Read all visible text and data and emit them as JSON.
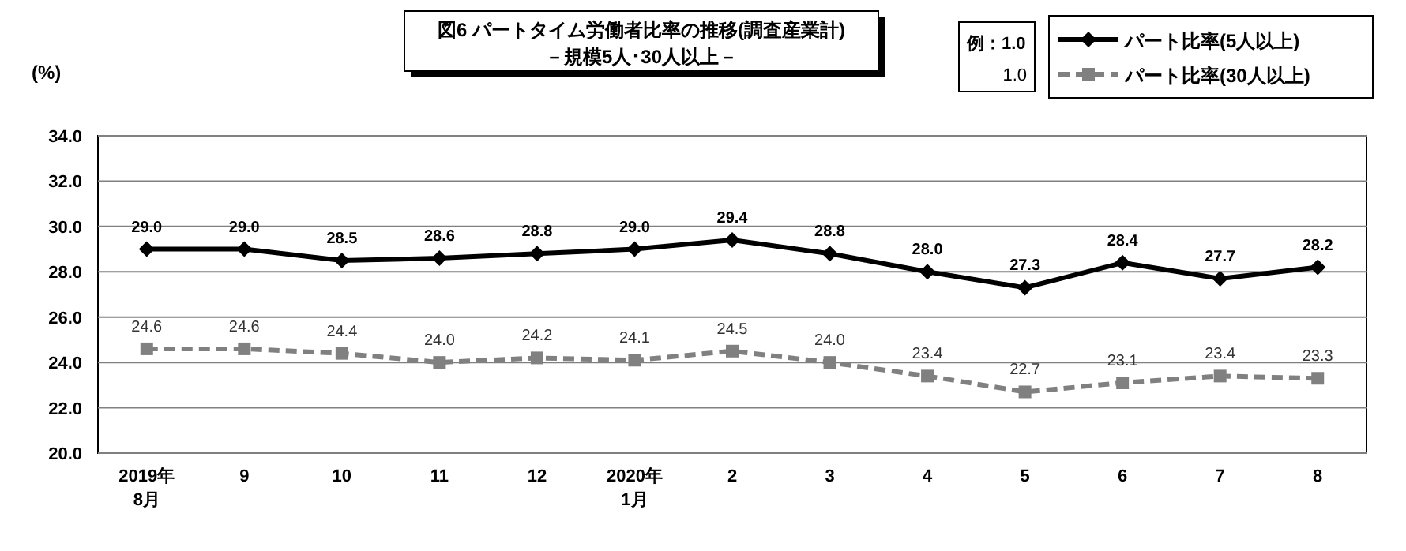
{
  "chart_data": {
    "type": "line",
    "title": "図6  パートタイム労働者比率の推移(調査産業計)",
    "subtitle": "－規模5人･30人以上－",
    "ylabel": "(%)",
    "categories": [
      "2019年\n8月",
      "9",
      "10",
      "11",
      "12",
      "2020年\n1月",
      "2",
      "3",
      "4",
      "5",
      "6",
      "7",
      "8"
    ],
    "series": [
      {
        "name": "パート比率(5人以上)",
        "color": "#000000",
        "marker": "diamond",
        "line_style": "solid",
        "values": [
          29.0,
          29.0,
          28.5,
          28.6,
          28.8,
          29.0,
          29.4,
          28.8,
          28.0,
          27.3,
          28.4,
          27.7,
          28.2
        ],
        "value_labels": [
          "29.0",
          "29.0",
          "28.5",
          "28.6",
          "28.8",
          "29.0",
          "29.4",
          "28.8",
          "28.0",
          "27.3",
          "28.4",
          "27.7",
          "28.2"
        ]
      },
      {
        "name": "パート比率(30人以上)",
        "color": "#808080",
        "marker": "square",
        "line_style": "dashed",
        "values": [
          24.6,
          24.6,
          24.4,
          24.0,
          24.2,
          24.1,
          24.5,
          24.0,
          23.4,
          22.7,
          23.1,
          23.4,
          23.3
        ],
        "value_labels": [
          "24.6",
          "24.6",
          "24.4",
          "24.0",
          "24.2",
          "24.1",
          "24.5",
          "24.0",
          "23.4",
          "22.7",
          "23.1",
          "23.4",
          "23.3"
        ]
      }
    ],
    "annotations": [
      "例：1.0",
      "1.0"
    ],
    "ylim": [
      20.0,
      34.0
    ],
    "yticks": [
      {
        "value": 20,
        "label": "20.0"
      },
      {
        "value": 22,
        "label": "22.0"
      },
      {
        "value": 24,
        "label": "24.0"
      },
      {
        "value": 26,
        "label": "26.0"
      },
      {
        "value": 28,
        "label": "28.0"
      },
      {
        "value": 30,
        "label": "30.0"
      },
      {
        "value": 32,
        "label": "32.0"
      },
      {
        "value": 34,
        "label": "34.0"
      }
    ],
    "grid": "y",
    "legend": "top right"
  }
}
